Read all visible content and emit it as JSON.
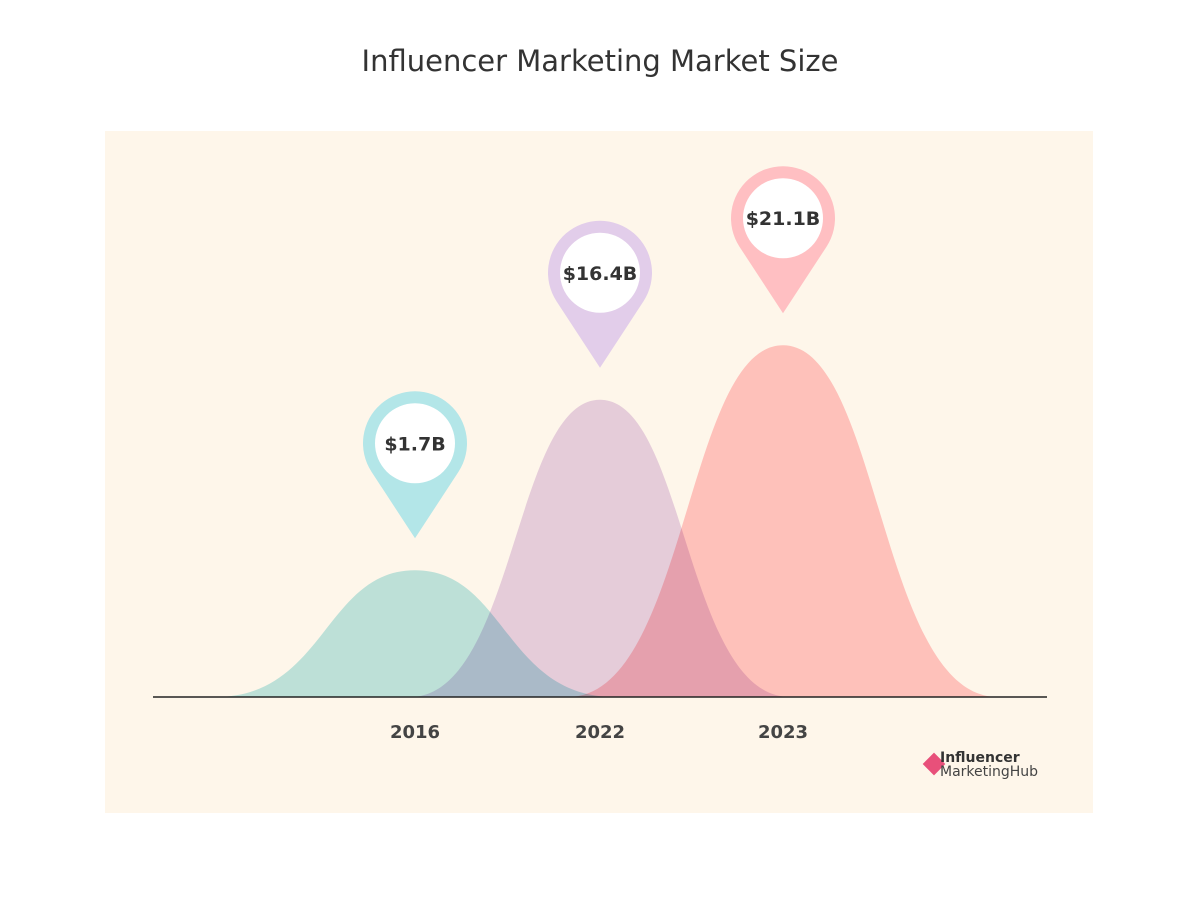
{
  "chart_data": {
    "type": "area",
    "title": "Influencer Marketing Market Size",
    "categories": [
      "2016",
      "2022",
      "2023"
    ],
    "values": [
      1.7,
      16.4,
      21.1
    ],
    "labels": [
      "$1.7B",
      "$16.4B",
      "$21.1B"
    ],
    "unit": "USD billions",
    "colors": [
      "#b3e6e8",
      "#e2cdea",
      "#ffbfc2"
    ],
    "grid": false,
    "legend": "none"
  },
  "logo": {
    "line1": "Influencer",
    "line2": "MarketingHub",
    "color": "#e8507a"
  }
}
